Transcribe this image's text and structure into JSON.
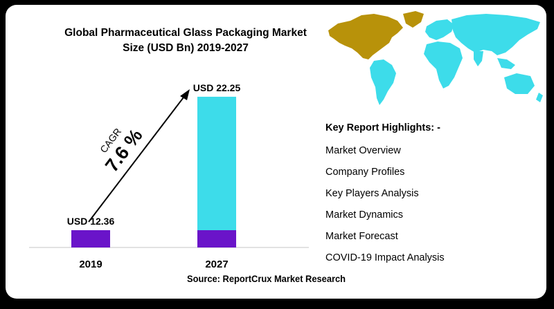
{
  "colors": {
    "series_2019": "#6a14c9",
    "series_2027_top": "#3ddcea",
    "series_2027_base": "#6a14c9",
    "map_americas": "#b8920a",
    "map_rest": "#3ddcea",
    "background": "#000000",
    "card": "#ffffff"
  },
  "header": {
    "title_line1": "Global Pharmaceutical Glass Packaging Market",
    "title_line2": "Size (USD Bn) 2019-2027"
  },
  "cagr": {
    "label": "CAGR",
    "value": "7.6 %"
  },
  "chart_data": {
    "type": "bar",
    "title": "Global Pharmaceutical Glass Packaging Market Size (USD Bn) 2019-2027",
    "categories": [
      "2019",
      "2027"
    ],
    "values": [
      12.36,
      22.25
    ],
    "data_labels": [
      "USD 12.36",
      "USD 22.25"
    ],
    "annotation": "CAGR 7.6 %",
    "grid": false,
    "legend": "none"
  },
  "map": {
    "icon": "world-map-icon"
  },
  "highlights": {
    "title": "Key Report Highlights: -",
    "items": [
      "Market Overview",
      "Company Profiles",
      "Key Players Analysis",
      "Market Dynamics",
      "Market Forecast",
      "COVID-19 Impact Analysis"
    ]
  },
  "source": "Source: ReportCrux Market Research"
}
